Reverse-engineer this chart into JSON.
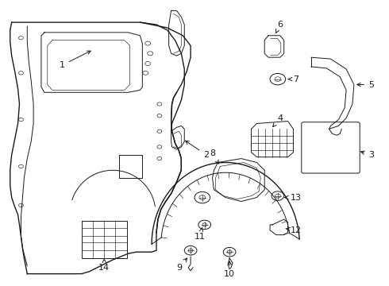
{
  "background_color": "#ffffff",
  "line_color": "#1a1a1a",
  "lw_main": 1.0,
  "lw_thin": 0.7,
  "lw_fine": 0.45,
  "figsize": [
    4.9,
    3.6
  ],
  "dpi": 100
}
